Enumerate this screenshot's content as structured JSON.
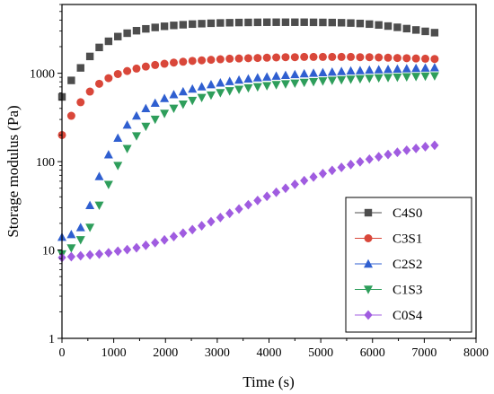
{
  "chart_data": {
    "type": "scatter",
    "xlabel": "Time (s)",
    "ylabel": "Storage modulus (Pa)",
    "xlim": [
      0,
      8000
    ],
    "ylim": [
      1,
      6000
    ],
    "yscale": "log",
    "xticks": [
      0,
      1000,
      2000,
      3000,
      4000,
      5000,
      6000,
      7000,
      8000
    ],
    "yticks": [
      1,
      10,
      100,
      1000
    ],
    "ytick_labels": [
      "1",
      "10",
      "100",
      "1000"
    ],
    "legend_position": "lower-right",
    "x": [
      0,
      180,
      360,
      540,
      720,
      900,
      1080,
      1260,
      1440,
      1620,
      1800,
      1980,
      2160,
      2340,
      2520,
      2700,
      2880,
      3060,
      3240,
      3420,
      3600,
      3780,
      3960,
      4140,
      4320,
      4500,
      4680,
      4860,
      5040,
      5220,
      5400,
      5580,
      5760,
      5940,
      6120,
      6300,
      6480,
      6660,
      6840,
      7020,
      7200
    ],
    "series": [
      {
        "name": "C4S0",
        "marker": "square",
        "color": "#4d4d4d",
        "values": [
          540,
          830,
          1150,
          1550,
          1960,
          2300,
          2600,
          2840,
          3030,
          3180,
          3300,
          3400,
          3480,
          3540,
          3600,
          3640,
          3680,
          3710,
          3730,
          3750,
          3760,
          3770,
          3780,
          3780,
          3780,
          3780,
          3780,
          3770,
          3760,
          3750,
          3730,
          3700,
          3660,
          3600,
          3520,
          3420,
          3310,
          3200,
          3090,
          2980,
          2880
        ]
      },
      {
        "name": "C3S1",
        "marker": "circle",
        "color": "#d9473a",
        "values": [
          200,
          330,
          470,
          620,
          760,
          880,
          980,
          1060,
          1130,
          1190,
          1240,
          1280,
          1320,
          1350,
          1380,
          1400,
          1420,
          1440,
          1460,
          1470,
          1480,
          1490,
          1500,
          1510,
          1520,
          1520,
          1530,
          1530,
          1530,
          1530,
          1530,
          1530,
          1520,
          1520,
          1510,
          1500,
          1490,
          1480,
          1470,
          1460,
          1450
        ]
      },
      {
        "name": "C2S2",
        "marker": "triangle-up",
        "color": "#2f5fd0",
        "values": [
          14,
          15,
          18,
          32,
          68,
          120,
          185,
          260,
          330,
          400,
          460,
          520,
          575,
          620,
          665,
          705,
          745,
          780,
          810,
          840,
          865,
          890,
          910,
          930,
          950,
          970,
          990,
          1005,
          1020,
          1035,
          1050,
          1065,
          1075,
          1090,
          1100,
          1110,
          1120,
          1130,
          1140,
          1150,
          1160
        ]
      },
      {
        "name": "C1S3",
        "marker": "triangle-down",
        "color": "#2e9e5b",
        "values": [
          9,
          10.5,
          13,
          18,
          32,
          55,
          90,
          140,
          195,
          250,
          300,
          350,
          400,
          445,
          490,
          530,
          565,
          600,
          630,
          655,
          680,
          700,
          720,
          740,
          755,
          770,
          785,
          800,
          815,
          828,
          840,
          852,
          863,
          873,
          882,
          891,
          900,
          908,
          916,
          924,
          930
        ]
      },
      {
        "name": "C0S4",
        "marker": "diamond",
        "color": "#a05ce0",
        "values": [
          8.2,
          8.4,
          8.6,
          8.8,
          9.0,
          9.3,
          9.7,
          10.1,
          10.6,
          11.3,
          12.1,
          13.0,
          14.2,
          15.5,
          17.0,
          18.8,
          20.9,
          23.3,
          26.0,
          29.1,
          32.5,
          36.3,
          40.5,
          45.0,
          50.0,
          55.3,
          61.0,
          67.0,
          73.2,
          79.5,
          86.0,
          92.7,
          99.5,
          106.5,
          113.5,
          120.5,
          127.5,
          134.5,
          141.0,
          147.5,
          153.0
        ]
      }
    ]
  }
}
